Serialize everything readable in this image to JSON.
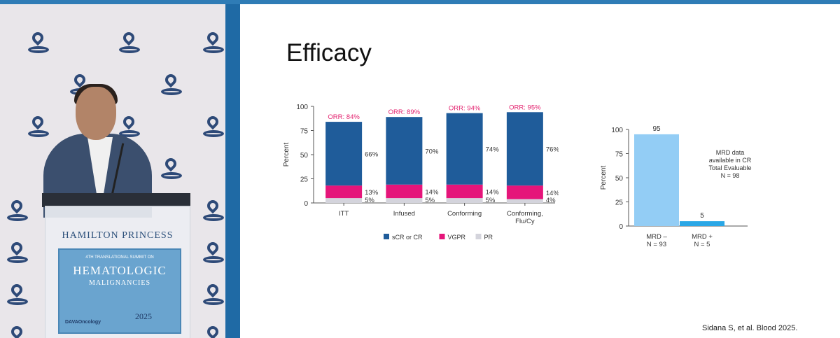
{
  "slide": {
    "title": "Efficacy",
    "citation": "Sidana S, et al. Blood 2025."
  },
  "podium": {
    "name": "HAMILTON PRINCESS",
    "sign_small": "4TH TRANSLATIONAL SUMMIT ON",
    "sign_big": "HEMATOLOGIC",
    "sign_mid": "MALIGNANCIES",
    "brand": "DAVAOncology",
    "year": "2025"
  },
  "colors": {
    "scr_cr": "#1f5c9a",
    "vgpr": "#e5157a",
    "pr": "#d4d4dc",
    "orr": "#e3236f",
    "mrd_neg": "#93cdf5",
    "mrd_pos": "#2aa7e6"
  },
  "chart_data": [
    {
      "type": "bar",
      "stacked": true,
      "ylabel": "Percent",
      "ylim": [
        0,
        100
      ],
      "yticks": [
        "0",
        "25",
        "50",
        "75",
        "100"
      ],
      "categories": [
        "ITT",
        "Infused",
        "Conforming",
        "Conforming,\nFlu/Cy"
      ],
      "category_lines": [
        [
          "ITT"
        ],
        [
          "Infused"
        ],
        [
          "Conforming"
        ],
        [
          "Conforming,",
          "Flu/Cy"
        ]
      ],
      "series": [
        {
          "name": "PR",
          "values": [
            5,
            5,
            5,
            4
          ],
          "labels": [
            "5%",
            "5%",
            "5%",
            "4%"
          ]
        },
        {
          "name": "VGPR",
          "values": [
            13,
            14,
            14,
            14
          ],
          "labels": [
            "13%",
            "14%",
            "14%",
            "14%"
          ]
        },
        {
          "name": "sCR or CR",
          "values": [
            66,
            70,
            74,
            76
          ],
          "labels": [
            "66%",
            "70%",
            "74%",
            "76%"
          ]
        }
      ],
      "annotations": [
        "ORR: 84%",
        "ORR: 89%",
        "ORR: 94%",
        "ORR: 95%"
      ],
      "legend": [
        "sCR or CR",
        "VGPR",
        "PR"
      ],
      "legend_position": "bottom"
    },
    {
      "type": "bar",
      "ylabel": "Percent",
      "ylim": [
        0,
        100
      ],
      "yticks": [
        "0",
        "25",
        "50",
        "75",
        "100"
      ],
      "categories": [
        "MRD –\nN = 93",
        "MRD +\nN = 5"
      ],
      "category_lines": [
        [
          "MRD –",
          "N = 93"
        ],
        [
          "MRD +",
          "N = 5"
        ]
      ],
      "values": [
        95,
        5
      ],
      "value_labels": [
        "95",
        "5"
      ],
      "annotation_lines": [
        "MRD data",
        "available in CR",
        "Total Evaluable",
        "N = 98"
      ]
    }
  ]
}
